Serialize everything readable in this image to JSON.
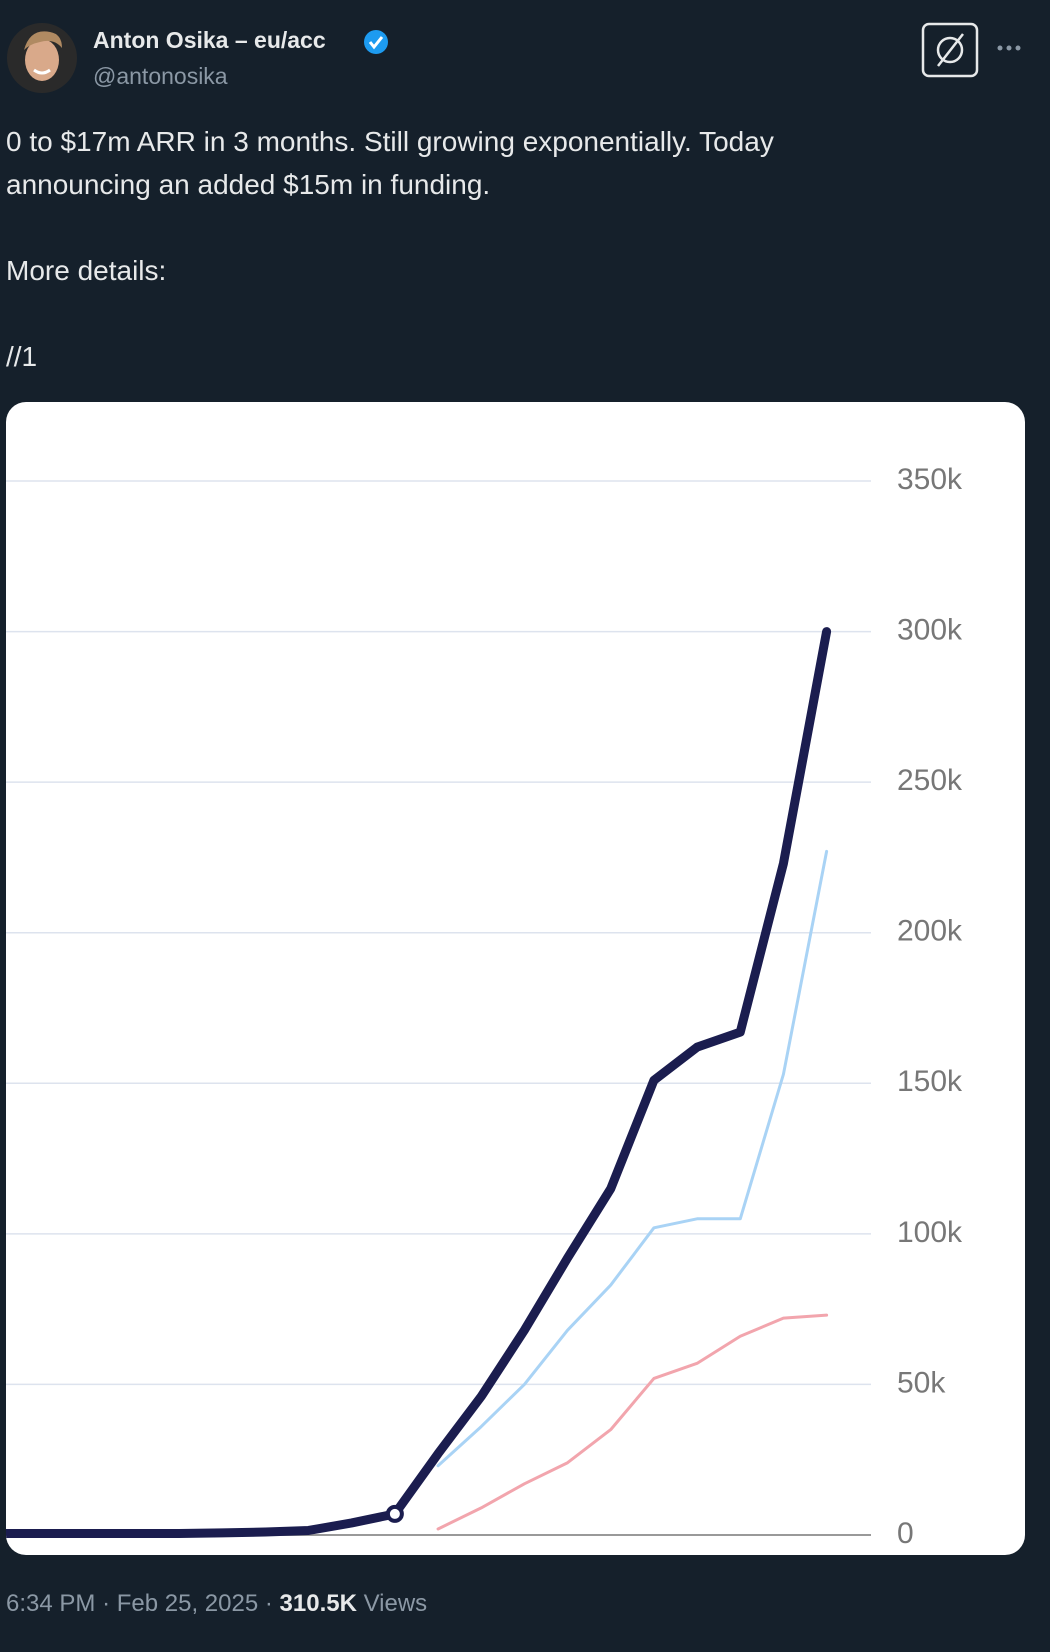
{
  "author": {
    "name": "Anton Osika – eu/acc",
    "handle": "@antonosika"
  },
  "text": {
    "paragraphs": [
      "0 to $17m ARR in 3 months. Still growing exponentially. Today announcing an added $15m in funding.",
      "More details:",
      "//1"
    ]
  },
  "footer": {
    "time": "6:34 PM",
    "separator": "·",
    "date": "Feb 25, 2025",
    "views": "310.5K",
    "views_label": "Views"
  },
  "chart_data": {
    "type": "line",
    "categories": [
      null,
      null,
      null,
      null,
      null,
      null,
      null,
      null,
      null,
      null,
      null,
      null,
      null,
      null,
      null,
      null,
      null,
      null,
      null,
      null
    ],
    "series": [
      {
        "color": "#1b1d4f",
        "values": [
          500,
          500,
          500,
          500,
          500,
          700,
          1000,
          1500,
          4000,
          7000,
          27000,
          46000,
          68000,
          92000,
          115000,
          151000,
          162000,
          167000,
          223000,
          300000
        ]
      },
      {
        "color": "#a9d3f5",
        "values": [
          null,
          null,
          null,
          null,
          null,
          null,
          null,
          null,
          null,
          null,
          23000,
          36000,
          50000,
          68000,
          83000,
          102000,
          105000,
          105000,
          153000,
          227000
        ]
      },
      {
        "color": "#f2a5ad",
        "values": [
          null,
          null,
          null,
          null,
          null,
          null,
          null,
          null,
          null,
          null,
          2000,
          9000,
          17000,
          24000,
          35000,
          52000,
          57000,
          66000,
          72000,
          73000
        ]
      }
    ],
    "ylim": [
      0,
      350000
    ],
    "yticks": [
      0,
      {
        "value": 50000,
        "label": "50k"
      },
      {
        "value": 100000,
        "label": "100k"
      },
      {
        "value": 150000,
        "label": "150k"
      },
      {
        "value": 200000,
        "label": "200k"
      },
      {
        "value": 250000,
        "label": "250k"
      },
      {
        "value": 300000,
        "label": "300k"
      },
      {
        "value": 350000,
        "label": "350k"
      }
    ],
    "grid": true
  }
}
